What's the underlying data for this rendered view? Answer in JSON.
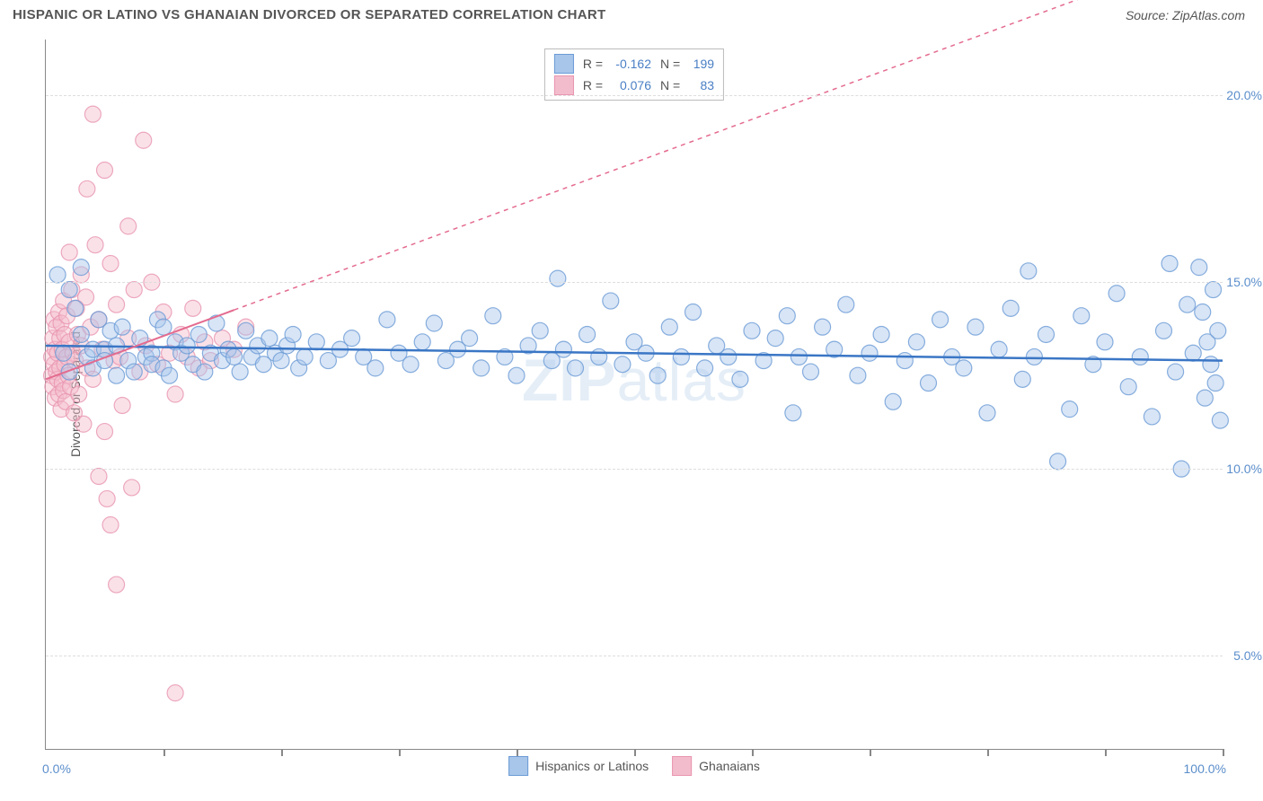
{
  "header": {
    "title": "HISPANIC OR LATINO VS GHANAIAN DIVORCED OR SEPARATED CORRELATION CHART",
    "source_prefix": "Source: ",
    "source": "ZipAtlas.com"
  },
  "watermark": {
    "part1": "ZIP",
    "part2": "atlas"
  },
  "chart": {
    "type": "scatter",
    "ylabel": "Divorced or Separated",
    "xlim": [
      0,
      100
    ],
    "ylim": [
      2.5,
      21.5
    ],
    "ygrid": [
      5,
      10,
      15,
      20
    ],
    "ytick_labels": [
      "5.0%",
      "10.0%",
      "15.0%",
      "20.0%"
    ],
    "xticks": [
      10,
      20,
      30,
      40,
      50,
      60,
      70,
      80,
      90,
      100
    ],
    "xaxis_min_label": "0.0%",
    "xaxis_max_label": "100.0%",
    "background_color": "#ffffff",
    "grid_color": "#dddddd",
    "axis_color": "#888888",
    "marker_radius": 9,
    "marker_opacity": 0.45,
    "series": [
      {
        "name": "Hispanics or Latinos",
        "fill": "#a8c6ea",
        "stroke": "#6b9bd6",
        "trend": {
          "color": "#3a76c5",
          "width": 2.5,
          "dash": "none",
          "y_at_x0": 13.3,
          "y_at_x100": 12.9
        },
        "stats": {
          "R": "-0.162",
          "N": "199"
        },
        "points": [
          [
            1,
            15.2
          ],
          [
            1.5,
            13.1
          ],
          [
            2,
            14.8
          ],
          [
            2,
            12.6
          ],
          [
            2.5,
            14.3
          ],
          [
            3,
            15.4
          ],
          [
            3,
            13.6
          ],
          [
            3.5,
            13.0
          ],
          [
            4,
            13.2
          ],
          [
            4,
            12.7
          ],
          [
            4.5,
            14.0
          ],
          [
            5,
            13.2
          ],
          [
            5,
            12.9
          ],
          [
            5.5,
            13.7
          ],
          [
            6,
            12.5
          ],
          [
            6,
            13.3
          ],
          [
            6.5,
            13.8
          ],
          [
            7,
            12.9
          ],
          [
            7.5,
            12.6
          ],
          [
            8,
            13.5
          ],
          [
            8.5,
            13.0
          ],
          [
            9,
            13.1
          ],
          [
            9,
            12.8
          ],
          [
            9.5,
            14.0
          ],
          [
            10,
            12.7
          ],
          [
            10,
            13.8
          ],
          [
            10.5,
            12.5
          ],
          [
            11,
            13.4
          ],
          [
            11.5,
            13.1
          ],
          [
            12,
            13.3
          ],
          [
            12.5,
            12.8
          ],
          [
            13,
            13.6
          ],
          [
            13.5,
            12.6
          ],
          [
            14,
            13.1
          ],
          [
            14.5,
            13.9
          ],
          [
            15,
            12.9
          ],
          [
            15.5,
            13.2
          ],
          [
            16,
            13.0
          ],
          [
            16.5,
            12.6
          ],
          [
            17,
            13.7
          ],
          [
            17.5,
            13.0
          ],
          [
            18,
            13.3
          ],
          [
            18.5,
            12.8
          ],
          [
            19,
            13.5
          ],
          [
            19.5,
            13.1
          ],
          [
            20,
            12.9
          ],
          [
            20.5,
            13.3
          ],
          [
            21,
            13.6
          ],
          [
            21.5,
            12.7
          ],
          [
            22,
            13.0
          ],
          [
            23,
            13.4
          ],
          [
            24,
            12.9
          ],
          [
            25,
            13.2
          ],
          [
            26,
            13.5
          ],
          [
            27,
            13.0
          ],
          [
            28,
            12.7
          ],
          [
            29,
            14.0
          ],
          [
            30,
            13.1
          ],
          [
            31,
            12.8
          ],
          [
            32,
            13.4
          ],
          [
            33,
            13.9
          ],
          [
            34,
            12.9
          ],
          [
            35,
            13.2
          ],
          [
            36,
            13.5
          ],
          [
            37,
            12.7
          ],
          [
            38,
            14.1
          ],
          [
            39,
            13.0
          ],
          [
            40,
            12.5
          ],
          [
            41,
            13.3
          ],
          [
            42,
            13.7
          ],
          [
            43,
            12.9
          ],
          [
            43.5,
            15.1
          ],
          [
            44,
            13.2
          ],
          [
            45,
            12.7
          ],
          [
            46,
            13.6
          ],
          [
            47,
            13.0
          ],
          [
            48,
            14.5
          ],
          [
            49,
            12.8
          ],
          [
            50,
            13.4
          ],
          [
            51,
            13.1
          ],
          [
            52,
            12.5
          ],
          [
            53,
            13.8
          ],
          [
            54,
            13.0
          ],
          [
            55,
            14.2
          ],
          [
            56,
            12.7
          ],
          [
            57,
            13.3
          ],
          [
            58,
            13.0
          ],
          [
            59,
            12.4
          ],
          [
            60,
            13.7
          ],
          [
            61,
            12.9
          ],
          [
            62,
            13.5
          ],
          [
            63,
            14.1
          ],
          [
            63.5,
            11.5
          ],
          [
            64,
            13.0
          ],
          [
            65,
            12.6
          ],
          [
            66,
            13.8
          ],
          [
            67,
            13.2
          ],
          [
            68,
            14.4
          ],
          [
            69,
            12.5
          ],
          [
            70,
            13.1
          ],
          [
            71,
            13.6
          ],
          [
            72,
            11.8
          ],
          [
            73,
            12.9
          ],
          [
            74,
            13.4
          ],
          [
            75,
            12.3
          ],
          [
            76,
            14.0
          ],
          [
            77,
            13.0
          ],
          [
            78,
            12.7
          ],
          [
            79,
            13.8
          ],
          [
            80,
            11.5
          ],
          [
            81,
            13.2
          ],
          [
            82,
            14.3
          ],
          [
            83,
            12.4
          ],
          [
            83.5,
            15.3
          ],
          [
            84,
            13.0
          ],
          [
            85,
            13.6
          ],
          [
            86,
            10.2
          ],
          [
            87,
            11.6
          ],
          [
            88,
            14.1
          ],
          [
            89,
            12.8
          ],
          [
            90,
            13.4
          ],
          [
            91,
            14.7
          ],
          [
            92,
            12.2
          ],
          [
            93,
            13.0
          ],
          [
            94,
            11.4
          ],
          [
            95,
            13.7
          ],
          [
            95.5,
            15.5
          ],
          [
            96,
            12.6
          ],
          [
            96.5,
            10.0
          ],
          [
            97,
            14.4
          ],
          [
            97.5,
            13.1
          ],
          [
            98,
            15.4
          ],
          [
            98.3,
            14.2
          ],
          [
            98.5,
            11.9
          ],
          [
            98.7,
            13.4
          ],
          [
            99,
            12.8
          ],
          [
            99.2,
            14.8
          ],
          [
            99.4,
            12.3
          ],
          [
            99.6,
            13.7
          ],
          [
            99.8,
            11.3
          ]
        ]
      },
      {
        "name": "Ghanaians",
        "fill": "#f3bccc",
        "stroke": "#e995b0",
        "trend": {
          "color": "#e46b8f",
          "width": 1.5,
          "dash": "5,5",
          "y_at_x0": 12.4,
          "y_at_x100": 24.0
        },
        "trend_solid_until_x": 16,
        "stats": {
          "R": "0.076",
          "N": "83"
        },
        "points": [
          [
            0.5,
            12.5
          ],
          [
            0.5,
            13.0
          ],
          [
            0.6,
            13.5
          ],
          [
            0.6,
            12.2
          ],
          [
            0.7,
            12.8
          ],
          [
            0.7,
            14.0
          ],
          [
            0.8,
            13.2
          ],
          [
            0.8,
            11.9
          ],
          [
            0.9,
            12.6
          ],
          [
            0.9,
            13.8
          ],
          [
            1.0,
            12.4
          ],
          [
            1.0,
            13.1
          ],
          [
            1.1,
            14.2
          ],
          [
            1.1,
            12.0
          ],
          [
            1.2,
            13.5
          ],
          [
            1.2,
            12.7
          ],
          [
            1.3,
            11.6
          ],
          [
            1.3,
            13.9
          ],
          [
            1.4,
            12.3
          ],
          [
            1.4,
            13.2
          ],
          [
            1.5,
            14.5
          ],
          [
            1.5,
            12.1
          ],
          [
            1.6,
            13.6
          ],
          [
            1.6,
            12.8
          ],
          [
            1.7,
            11.8
          ],
          [
            1.8,
            14.1
          ],
          [
            1.8,
            13.0
          ],
          [
            1.9,
            12.5
          ],
          [
            2.0,
            15.8
          ],
          [
            2.0,
            13.4
          ],
          [
            2.1,
            12.2
          ],
          [
            2.2,
            14.8
          ],
          [
            2.3,
            13.1
          ],
          [
            2.4,
            11.5
          ],
          [
            2.5,
            12.9
          ],
          [
            2.6,
            14.3
          ],
          [
            2.7,
            13.6
          ],
          [
            2.8,
            12.0
          ],
          [
            3.0,
            15.2
          ],
          [
            3.0,
            13.3
          ],
          [
            3.2,
            11.2
          ],
          [
            3.4,
            14.6
          ],
          [
            3.5,
            12.7
          ],
          [
            3.5,
            17.5
          ],
          [
            3.8,
            13.8
          ],
          [
            4.0,
            19.5
          ],
          [
            4.0,
            12.4
          ],
          [
            4.2,
            16.0
          ],
          [
            4.5,
            14.0
          ],
          [
            4.5,
            9.8
          ],
          [
            4.8,
            13.2
          ],
          [
            5.0,
            18.0
          ],
          [
            5.0,
            11.0
          ],
          [
            5.2,
            9.2
          ],
          [
            5.5,
            15.5
          ],
          [
            5.5,
            8.5
          ],
          [
            5.8,
            12.9
          ],
          [
            6.0,
            14.4
          ],
          [
            6.0,
            6.9
          ],
          [
            6.3,
            13.0
          ],
          [
            6.5,
            11.7
          ],
          [
            7.0,
            16.5
          ],
          [
            7.0,
            13.5
          ],
          [
            7.3,
            9.5
          ],
          [
            7.5,
            14.8
          ],
          [
            8.0,
            12.6
          ],
          [
            8.3,
            18.8
          ],
          [
            8.5,
            13.3
          ],
          [
            9.0,
            15.0
          ],
          [
            9.5,
            12.8
          ],
          [
            10.0,
            14.2
          ],
          [
            10.5,
            13.1
          ],
          [
            11.0,
            4.0
          ],
          [
            11.0,
            12.0
          ],
          [
            11.5,
            13.6
          ],
          [
            12.0,
            13.0
          ],
          [
            12.5,
            14.3
          ],
          [
            13.0,
            12.7
          ],
          [
            13.5,
            13.4
          ],
          [
            14.0,
            12.9
          ],
          [
            15.0,
            13.5
          ],
          [
            16.0,
            13.2
          ],
          [
            17.0,
            13.8
          ]
        ]
      }
    ],
    "legend": {
      "items": [
        {
          "label": "Hispanics or Latinos",
          "fill": "#a8c6ea",
          "stroke": "#6b9bd6"
        },
        {
          "label": "Ghanaians",
          "fill": "#f3bccc",
          "stroke": "#e995b0"
        }
      ]
    }
  }
}
